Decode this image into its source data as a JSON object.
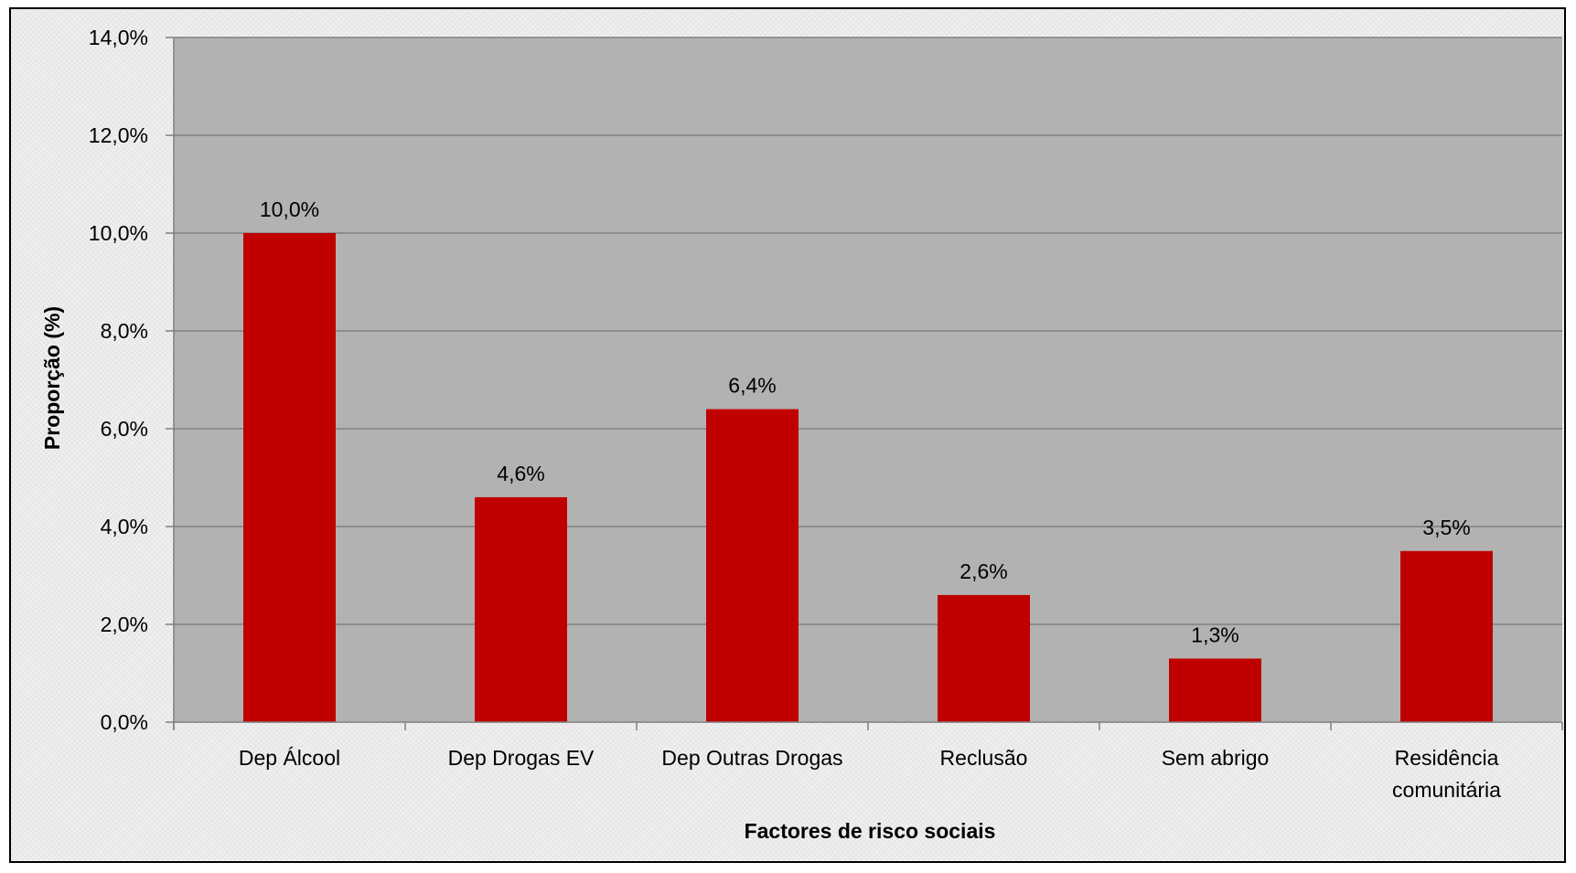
{
  "chart_data": {
    "type": "bar",
    "title": "",
    "xlabel": "Factores de risco sociais",
    "ylabel": "Proporção (%)",
    "ylim": [
      0,
      14
    ],
    "yticks": [
      0,
      2,
      4,
      6,
      8,
      10,
      12,
      14
    ],
    "ytick_labels": [
      "0,0%",
      "2,0%",
      "4,0%",
      "6,0%",
      "8,0%",
      "10,0%",
      "12,0%",
      "14,0%"
    ],
    "categories": [
      [
        "Dep Álcool"
      ],
      [
        "Dep Drogas EV"
      ],
      [
        "Dep Outras Drogas"
      ],
      [
        "Reclusão"
      ],
      [
        "Sem abrigo"
      ],
      [
        "Residência",
        "comunitária"
      ]
    ],
    "values": [
      10.0,
      4.6,
      6.4,
      2.6,
      1.3,
      3.5
    ],
    "data_labels": [
      "10,0%",
      "4,6%",
      "6,4%",
      "2,6%",
      "1,3%",
      "3,5%"
    ],
    "grid": true,
    "legend": "none",
    "colors": {
      "bar": "#c00000",
      "plot_background": "#b2b2b2",
      "gridline": "#7f7f7f",
      "axis": "#7f7f7f"
    }
  }
}
